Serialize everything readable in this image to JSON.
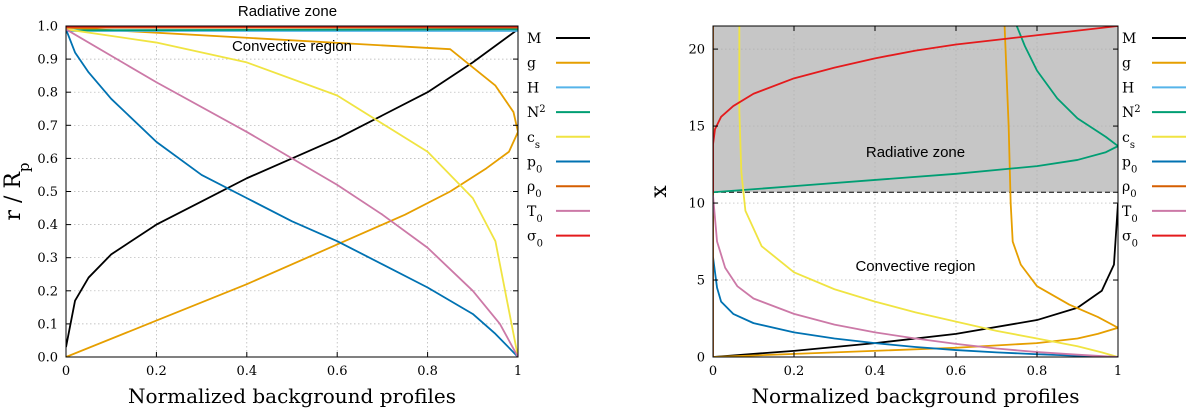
{
  "chart_data": [
    {
      "type": "line",
      "panel": "left",
      "xlabel": "Normalized background profiles",
      "ylabel": "r / R_p",
      "ylabel_main": "r / R",
      "ylabel_sub": "p",
      "xlim": [
        0,
        1
      ],
      "ylim": [
        0,
        1
      ],
      "xticks": [
        "0",
        "0.2",
        "0.4",
        "0.6",
        "0.8",
        "1"
      ],
      "yticks": [
        "0.0",
        "0.1",
        "0.2",
        "0.3",
        "0.4",
        "0.5",
        "0.6",
        "0.7",
        "0.8",
        "0.9",
        "1.0"
      ],
      "grid": true,
      "annotations": [
        {
          "text": "Radiative zone",
          "x": 0.49,
          "y": 1.045
        },
        {
          "text": "Convective region",
          "x": 0.5,
          "y": 0.94
        }
      ],
      "radiative_boundary": 0.985,
      "series": [
        {
          "name": "M",
          "color": "#000000",
          "x": [
            0.0,
            0.02,
            0.05,
            0.1,
            0.2,
            0.3,
            0.4,
            0.5,
            0.6,
            0.7,
            0.8,
            0.9,
            1.0
          ],
          "y": [
            0.03,
            0.17,
            0.24,
            0.31,
            0.4,
            0.47,
            0.54,
            0.6,
            0.66,
            0.73,
            0.8,
            0.89,
            0.99
          ]
        },
        {
          "name": "g",
          "color": "#e69f00",
          "x": [
            0.0,
            0.2,
            0.4,
            0.6,
            0.75,
            0.85,
            0.93,
            0.98,
            1.0,
            0.99,
            0.95,
            0.85,
            0.0
          ],
          "y": [
            0.0,
            0.11,
            0.22,
            0.34,
            0.43,
            0.5,
            0.57,
            0.62,
            0.68,
            0.74,
            0.82,
            0.93,
            0.995
          ]
        },
        {
          "name": "H",
          "color": "#56b4e9",
          "x": [
            0.0,
            1.0
          ],
          "y": [
            0.985,
            0.985
          ]
        },
        {
          "name": "N²",
          "color": "#009e73",
          "x": [
            0.0,
            1.0
          ],
          "y": [
            0.987,
            0.99
          ]
        },
        {
          "name": "c_s",
          "color": "#f0e442",
          "x": [
            0.0,
            0.2,
            0.4,
            0.6,
            0.8,
            0.9,
            0.95,
            1.0
          ],
          "y": [
            0.99,
            0.95,
            0.89,
            0.79,
            0.62,
            0.48,
            0.35,
            0.0
          ]
        },
        {
          "name": "p_0",
          "color": "#0072b2",
          "x": [
            0.0,
            0.02,
            0.05,
            0.1,
            0.2,
            0.3,
            0.4,
            0.5,
            0.6,
            0.7,
            0.8,
            0.9,
            0.95,
            1.0
          ],
          "y": [
            0.99,
            0.92,
            0.86,
            0.78,
            0.65,
            0.55,
            0.48,
            0.41,
            0.35,
            0.28,
            0.21,
            0.13,
            0.07,
            0.0
          ]
        },
        {
          "name": "ρ_0",
          "color": "#d55e00",
          "x": [
            0.0,
            1.0
          ],
          "y": [
            0.995,
            0.995
          ]
        },
        {
          "name": "T_0",
          "color": "#cc79a7",
          "x": [
            0.0,
            0.2,
            0.4,
            0.6,
            0.7,
            0.8,
            0.9,
            0.96,
            1.0
          ],
          "y": [
            0.99,
            0.83,
            0.68,
            0.52,
            0.43,
            0.33,
            0.2,
            0.1,
            0.0
          ]
        },
        {
          "name": "σ_0",
          "color": "#e41a1c",
          "x": [
            0.0,
            1.0
          ],
          "y": [
            0.998,
            0.998
          ]
        }
      ]
    },
    {
      "type": "line",
      "panel": "right",
      "xlabel": "Normalized background profiles",
      "ylabel": "x",
      "xlim": [
        0,
        1
      ],
      "ylim": [
        0,
        21.5
      ],
      "xticks": [
        "0",
        "0.2",
        "0.4",
        "0.6",
        "0.8",
        "1"
      ],
      "yticks": [
        "0",
        "5",
        "10",
        "15",
        "20"
      ],
      "grid": true,
      "annotations": [
        {
          "text": "Radiative zone",
          "x": 0.5,
          "y": 13.3
        },
        {
          "text": "Convective region",
          "x": 0.5,
          "y": 5.9
        }
      ],
      "radiative_boundary": 10.7,
      "series": [
        {
          "name": "M",
          "color": "#000000",
          "x": [
            0.0,
            0.2,
            0.4,
            0.6,
            0.8,
            0.9,
            0.96,
            0.99,
            1.0
          ],
          "y": [
            0.0,
            0.4,
            0.9,
            1.5,
            2.4,
            3.2,
            4.3,
            6.0,
            10.0
          ]
        },
        {
          "name": "g",
          "color": "#e69f00",
          "x": [
            0.0,
            0.3,
            0.6,
            0.8,
            0.9,
            0.95,
            1.0,
            0.95,
            0.88,
            0.8,
            0.76,
            0.74,
            0.735,
            0.73,
            0.72
          ],
          "y": [
            0.0,
            0.3,
            0.6,
            0.9,
            1.2,
            1.5,
            1.9,
            2.6,
            3.4,
            4.6,
            6.0,
            7.5,
            10.0,
            15.0,
            21.5
          ]
        },
        {
          "name": "H",
          "color": "#56b4e9",
          "x": [
            0.0,
            0.0
          ],
          "y": [
            0.0,
            21.5
          ]
        },
        {
          "name": "N²",
          "color": "#009e73",
          "x": [
            0.0,
            0.2,
            0.4,
            0.6,
            0.8,
            0.9,
            0.97,
            1.0,
            0.97,
            0.9,
            0.85,
            0.8,
            0.77,
            0.75
          ],
          "y": [
            10.7,
            11.1,
            11.5,
            11.9,
            12.4,
            12.8,
            13.3,
            13.7,
            14.3,
            15.5,
            16.8,
            18.6,
            20.2,
            21.5
          ]
        },
        {
          "name": "c_s",
          "color": "#f0e442",
          "x": [
            0.065,
            0.065,
            0.07,
            0.08,
            0.12,
            0.2,
            0.3,
            0.4,
            0.5,
            0.6,
            0.7,
            0.8,
            0.9,
            0.96,
            1.0
          ],
          "y": [
            21.5,
            16.0,
            12.0,
            9.5,
            7.2,
            5.5,
            4.4,
            3.6,
            2.9,
            2.3,
            1.7,
            1.2,
            0.7,
            0.3,
            0.0
          ]
        },
        {
          "name": "p_0",
          "color": "#0072b2",
          "x": [
            0.0,
            0.01,
            0.02,
            0.05,
            0.1,
            0.2,
            0.3,
            0.4,
            0.5,
            0.6,
            0.7,
            0.8,
            0.9,
            1.0
          ],
          "y": [
            6.5,
            4.5,
            3.6,
            2.8,
            2.2,
            1.6,
            1.2,
            0.9,
            0.65,
            0.45,
            0.3,
            0.18,
            0.08,
            0.0
          ]
        },
        {
          "name": "ρ_0",
          "color": "#d55e00",
          "x": [
            0.0,
            0.0
          ],
          "y": [
            0.0,
            21.5
          ]
        },
        {
          "name": "T_0",
          "color": "#cc79a7",
          "x": [
            0.0,
            0.01,
            0.03,
            0.06,
            0.1,
            0.2,
            0.3,
            0.4,
            0.5,
            0.6,
            0.7,
            0.8,
            0.9,
            1.0
          ],
          "y": [
            10.5,
            7.5,
            5.8,
            4.6,
            3.8,
            2.8,
            2.1,
            1.6,
            1.2,
            0.85,
            0.55,
            0.32,
            0.15,
            0.0
          ]
        },
        {
          "name": "σ_0",
          "color": "#e41a1c",
          "x": [
            0.0,
            0.0,
            0.005,
            0.02,
            0.05,
            0.1,
            0.2,
            0.3,
            0.4,
            0.5,
            0.6,
            0.7,
            0.8,
            0.9,
            1.0
          ],
          "y": [
            10.7,
            13.8,
            14.8,
            15.6,
            16.3,
            17.1,
            18.1,
            18.8,
            19.4,
            19.9,
            20.3,
            20.6,
            20.9,
            21.2,
            21.5
          ]
        }
      ]
    }
  ],
  "legend": [
    {
      "key": "M",
      "label": "M",
      "sub": "",
      "sup": "",
      "color": "#000000"
    },
    {
      "key": "g",
      "label": "g",
      "sub": "",
      "sup": "",
      "color": "#e69f00"
    },
    {
      "key": "H",
      "label": "H",
      "sub": "",
      "sup": "",
      "color": "#56b4e9"
    },
    {
      "key": "N2",
      "label": "N",
      "sub": "",
      "sup": "2",
      "color": "#009e73"
    },
    {
      "key": "cs",
      "label": "c",
      "sub": "s",
      "sup": "",
      "color": "#f0e442"
    },
    {
      "key": "p0",
      "label": "p",
      "sub": "0",
      "sup": "",
      "color": "#0072b2"
    },
    {
      "key": "rho0",
      "label": "ρ",
      "sub": "0",
      "sup": "",
      "color": "#d55e00"
    },
    {
      "key": "T0",
      "label": "T",
      "sub": "0",
      "sup": "",
      "color": "#cc79a7"
    },
    {
      "key": "sigma0",
      "label": "σ",
      "sub": "0",
      "sup": "",
      "color": "#e41a1c"
    }
  ]
}
